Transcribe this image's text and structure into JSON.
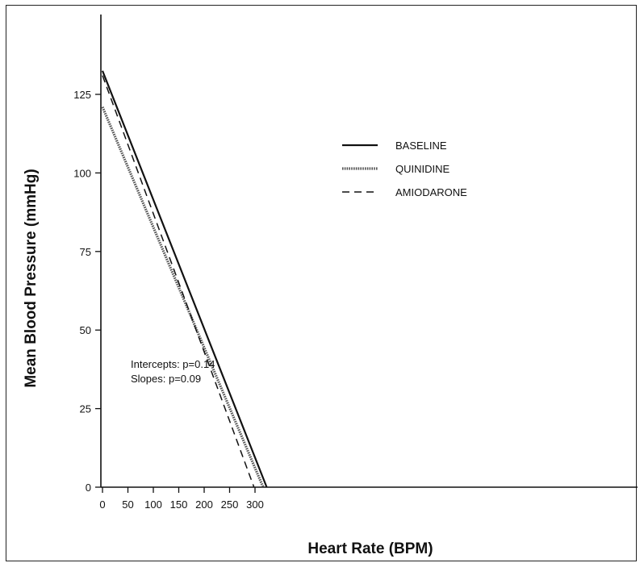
{
  "chart_data": {
    "type": "line",
    "title": "",
    "xlabel": "Heart Rate (BPM)",
    "ylabel": "Mean Blood Pressure (mmHg)",
    "xlim": [
      0,
      350
    ],
    "ylim": [
      0,
      150
    ],
    "x_ticks": [
      0,
      50,
      100,
      150,
      200,
      250,
      300
    ],
    "y_ticks": [
      0,
      25,
      50,
      75,
      100,
      125
    ],
    "grid": false,
    "legend_position": "upper-right",
    "series": [
      {
        "name": "BASELINE",
        "style": "solid",
        "color": "#111111",
        "x": [
          0,
          323
        ],
        "y": [
          132.5,
          0
        ]
      },
      {
        "name": "QUINIDINE",
        "style": "hatched",
        "color": "#555555",
        "x": [
          0,
          316
        ],
        "y": [
          121,
          0
        ]
      },
      {
        "name": "AMIODARONE",
        "style": "dashed",
        "color": "#111111",
        "x": [
          0,
          298
        ],
        "y": [
          131,
          0
        ]
      }
    ],
    "annotations": [
      "Intercepts: p=0.14",
      "Slopes: p=0.09"
    ]
  }
}
